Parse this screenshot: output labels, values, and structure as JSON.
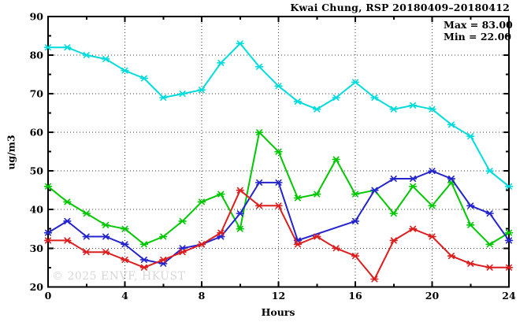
{
  "page": {
    "title": "Kwai Chung, RSP 20180409–20180412",
    "watermark": "© 2025 ENVF, HKUST"
  },
  "annotation": {
    "max_label": "Max = 83.00",
    "min_label": "Min = 22.00"
  },
  "chart_data": {
    "type": "line",
    "title": "Kwai Chung, RSP 20180409–20180412",
    "xlabel": "Hours",
    "ylabel": "ug/m3",
    "xlim": [
      0,
      24
    ],
    "ylim": [
      20,
      90
    ],
    "xticks": [
      0,
      4,
      8,
      12,
      16,
      20,
      24
    ],
    "xminor_step": 2,
    "yticks": [
      20,
      30,
      40,
      50,
      60,
      70,
      80,
      90
    ],
    "yminor_step": 5,
    "grid": "dotted at major ticks",
    "legend": "none",
    "marker": "asterisk",
    "stats": {
      "max": 83.0,
      "min": 22.0
    },
    "x": [
      0,
      1,
      2,
      3,
      4,
      5,
      6,
      7,
      8,
      9,
      10,
      11,
      12,
      13,
      14,
      15,
      16,
      17,
      18,
      19,
      20,
      21,
      22,
      23,
      24
    ],
    "series": [
      {
        "name": "cyan",
        "color": "#00dcdc",
        "values": [
          82,
          82,
          80,
          79,
          76,
          74,
          69,
          70,
          71,
          78,
          83,
          77,
          72,
          68,
          66,
          69,
          73,
          69,
          66,
          67,
          66,
          62,
          59,
          50,
          46
        ]
      },
      {
        "name": "green",
        "color": "#00c800",
        "values": [
          46,
          42,
          39,
          36,
          35,
          31,
          33,
          37,
          42,
          44,
          35,
          60,
          55,
          43,
          44,
          53,
          44,
          45,
          39,
          46,
          41,
          47,
          36,
          31,
          34
        ]
      },
      {
        "name": "blue",
        "color": "#2424cc",
        "values": [
          34,
          37,
          33,
          33,
          31,
          27,
          26,
          30,
          31,
          33,
          39,
          47,
          47,
          32,
          null,
          null,
          37,
          45,
          48,
          48,
          50,
          48,
          41,
          39,
          32
        ]
      },
      {
        "name": "red",
        "color": "#dc1e1e",
        "values": [
          32,
          32,
          29,
          29,
          27,
          25,
          27,
          29,
          31,
          34,
          45,
          41,
          41,
          31,
          33,
          30,
          28,
          22,
          32,
          35,
          33,
          28,
          26,
          25,
          25
        ]
      }
    ]
  }
}
